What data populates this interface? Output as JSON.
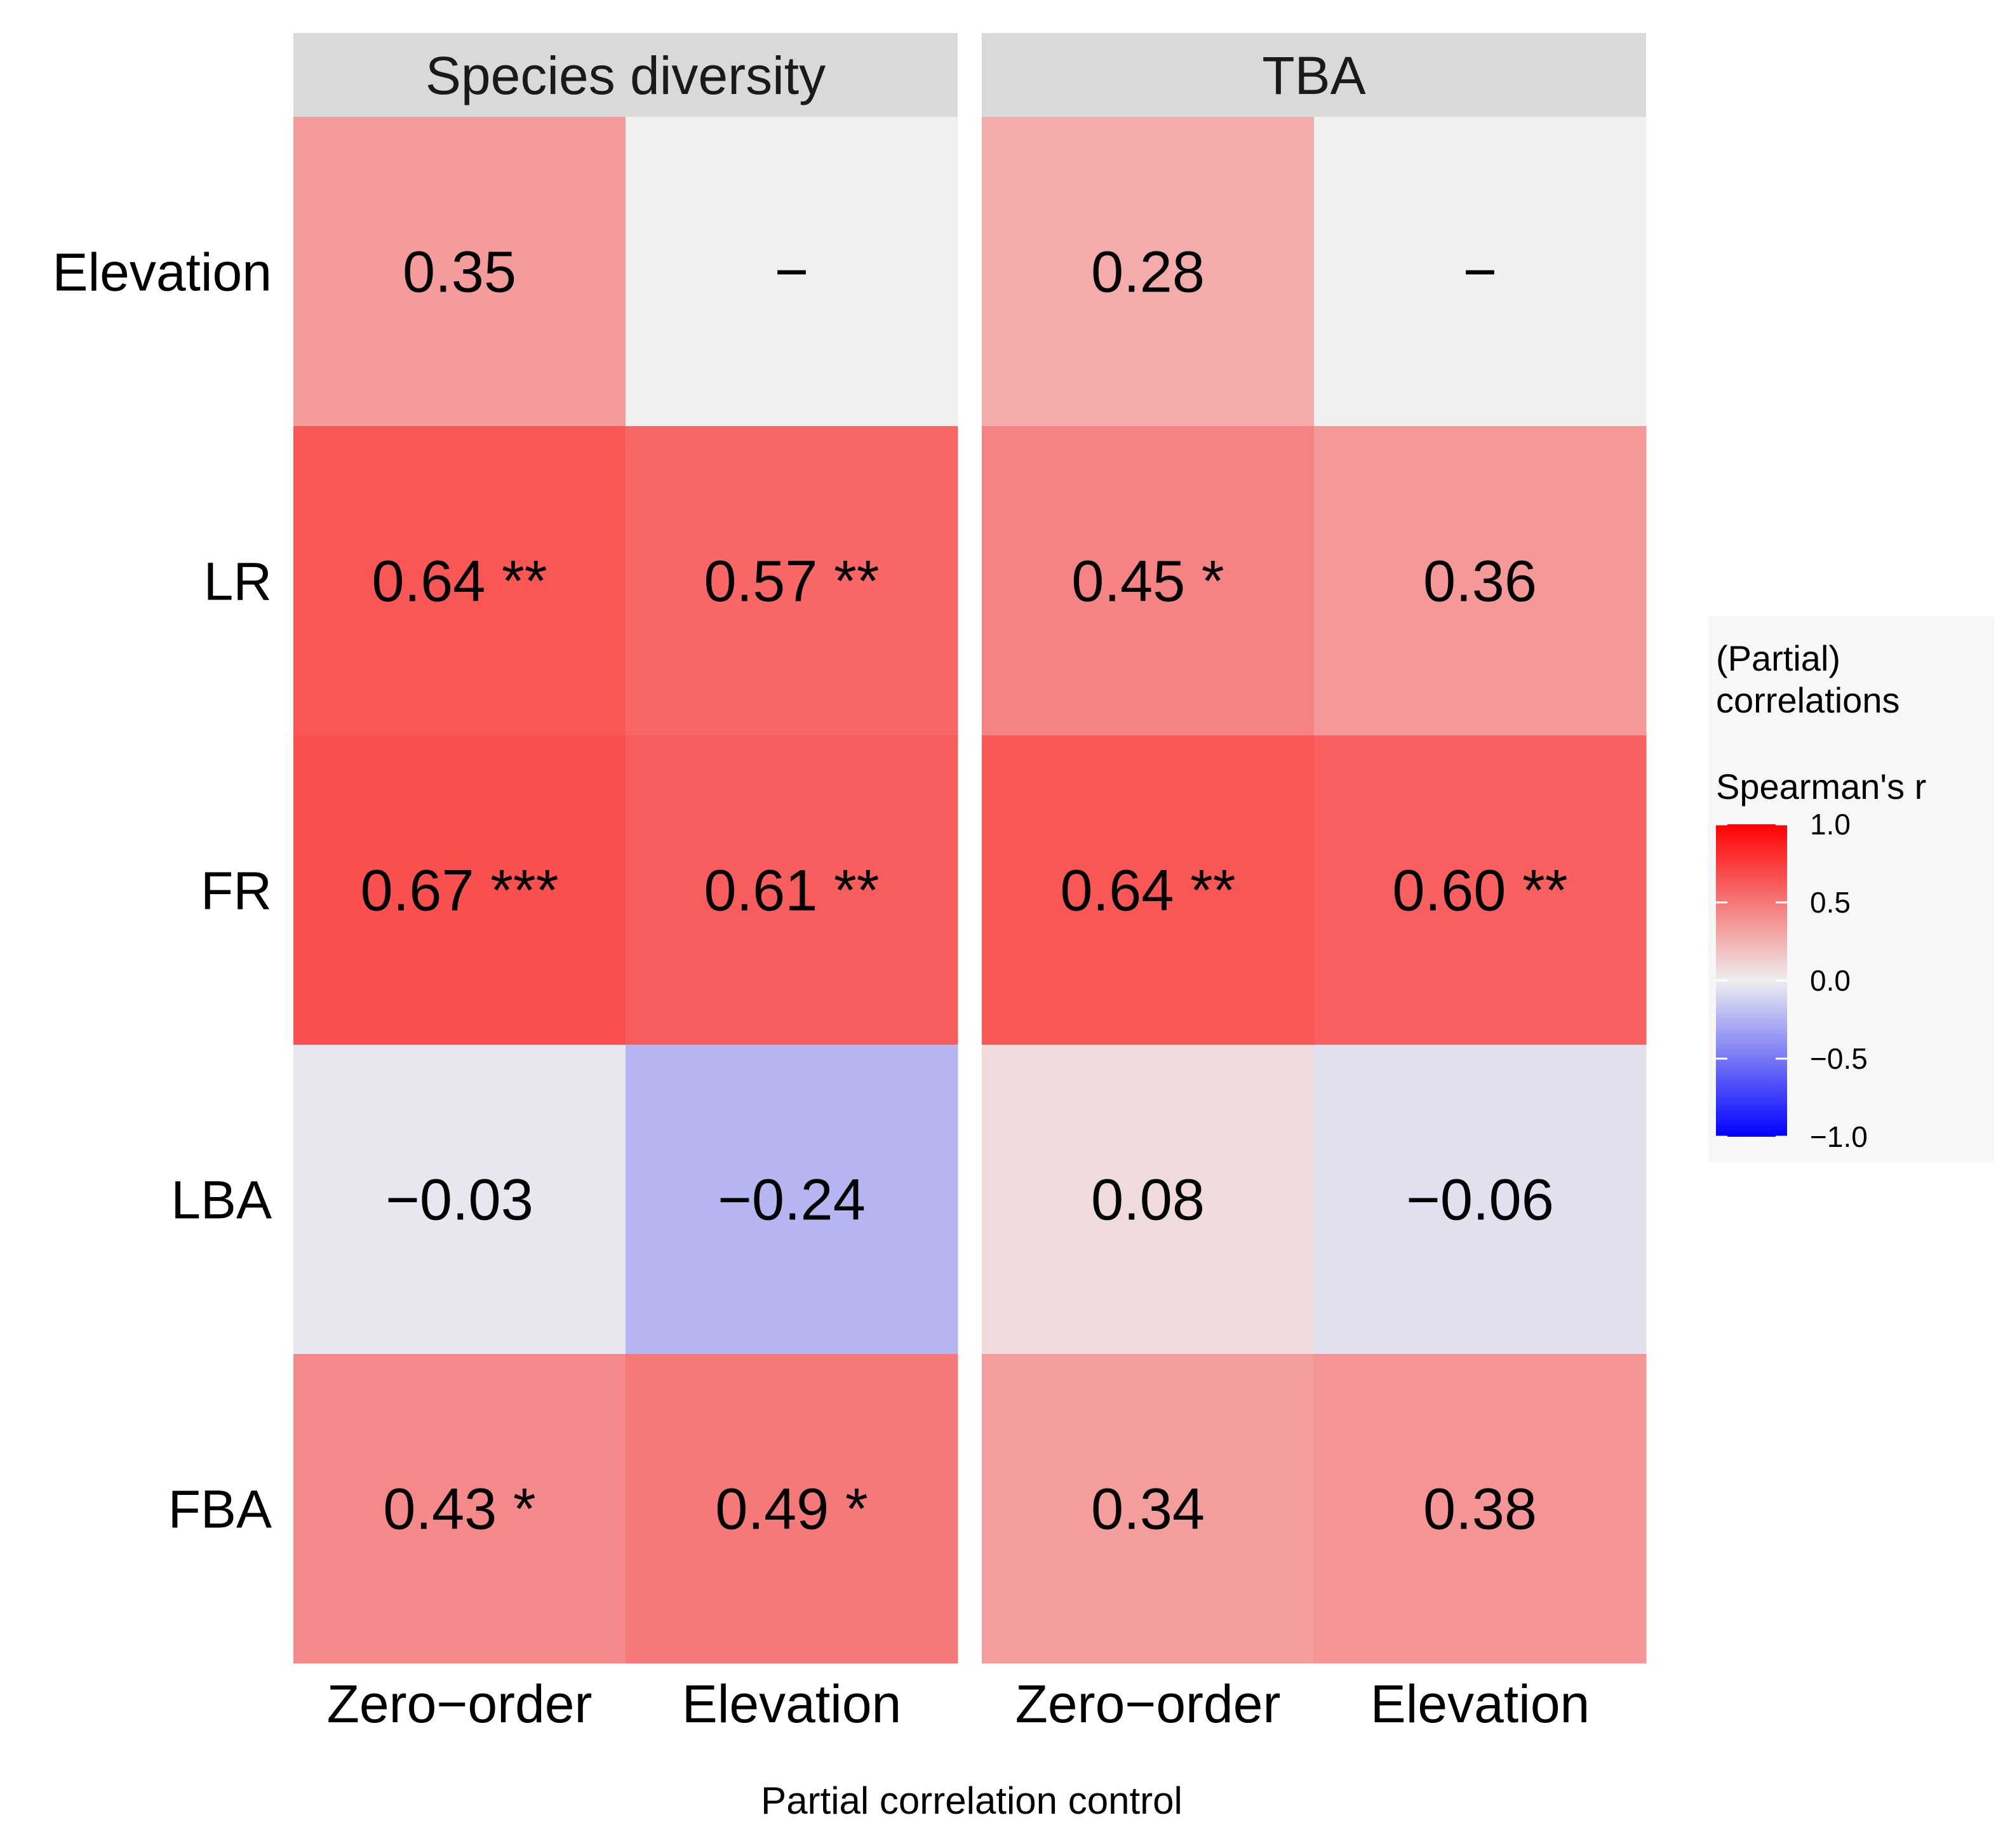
{
  "chart_data": {
    "type": "heatmap",
    "panels": [
      {
        "title": "Species diversity",
        "columns": [
          "Zero−order",
          "Elevation"
        ],
        "rows": [
          "Elevation",
          "LR",
          "FR",
          "LBA",
          "FBA"
        ],
        "values": [
          [
            0.35,
            null
          ],
          [
            0.64,
            0.57
          ],
          [
            0.67,
            0.61
          ],
          [
            -0.03,
            -0.24
          ],
          [
            0.43,
            0.49
          ]
        ],
        "labels": [
          [
            "0.35",
            "−"
          ],
          [
            "0.64 **",
            "0.57 **"
          ],
          [
            "0.67 ***",
            "0.61 **"
          ],
          [
            "−0.03",
            "−0.24"
          ],
          [
            "0.43 *",
            "0.49 *"
          ]
        ]
      },
      {
        "title": "TBA",
        "columns": [
          "Zero−order",
          "Elevation"
        ],
        "rows": [
          "Elevation",
          "LR",
          "FR",
          "LBA",
          "FBA"
        ],
        "values": [
          [
            0.28,
            null
          ],
          [
            0.45,
            0.36
          ],
          [
            0.64,
            0.6
          ],
          [
            0.08,
            -0.06
          ],
          [
            0.34,
            0.38
          ]
        ],
        "labels": [
          [
            "0.28",
            "−"
          ],
          [
            "0.45 *",
            "0.36"
          ],
          [
            "0.64 **",
            "0.60 **"
          ],
          [
            "0.08",
            "−0.06"
          ],
          [
            "0.34",
            "0.38"
          ]
        ]
      }
    ],
    "xlabel": "Partial correlation control",
    "ylabel": "",
    "legend": {
      "title_lines": [
        "(Partial)",
        "correlations",
        "Spearman's r"
      ],
      "ticks": [
        1.0,
        0.5,
        0.0,
        -0.5,
        -1.0
      ],
      "tick_labels": [
        "1.0",
        "0.5",
        "0.0",
        "−0.5",
        "−1.0"
      ],
      "range": [
        -1.0,
        1.0
      ],
      "placement": "right"
    },
    "colors": {
      "low": "#0000ff",
      "mid": "#eeeeee",
      "high": "#ff0000",
      "na": "#f0f0f0",
      "strip": "#d9d9d9"
    }
  }
}
